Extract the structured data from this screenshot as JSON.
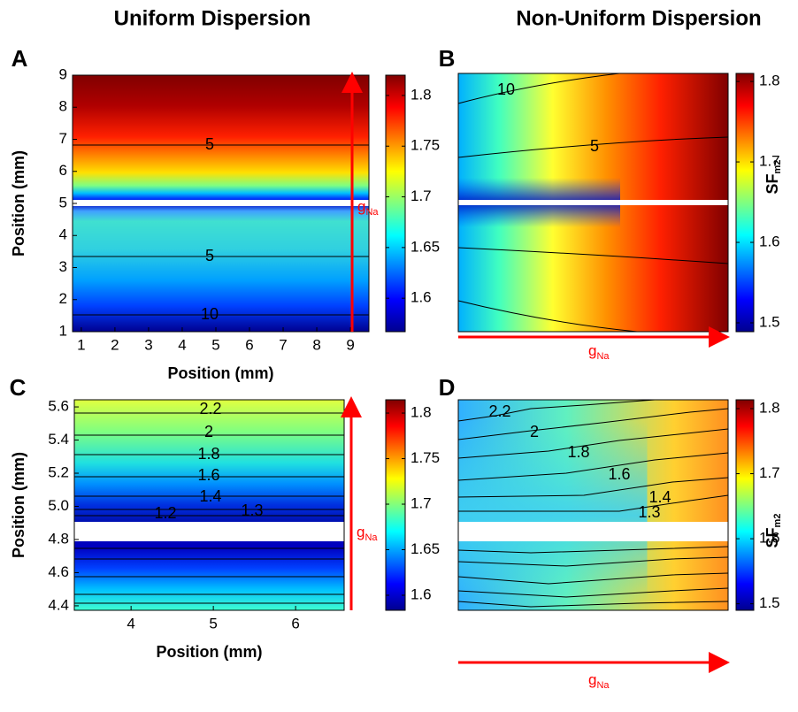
{
  "chart_data": [
    {
      "type": "heatmap",
      "panel": "A",
      "title": "Uniform Dispersion",
      "xlabel": "Position (mm)",
      "ylabel": "Position (mm)",
      "xlim": [
        0.74,
        9.55
      ],
      "xticks": [
        1,
        2,
        3,
        4,
        5,
        6,
        7,
        8,
        9
      ],
      "ylim": [
        1,
        9
      ],
      "yticks": [
        1,
        2,
        3,
        4,
        5,
        6,
        7,
        8,
        9
      ],
      "clim": [
        1.567,
        1.82
      ],
      "cticks": [
        1.6,
        1.65,
        1.7,
        1.75,
        1.8
      ],
      "contour_labels": [
        "5",
        "5",
        "10"
      ],
      "annotation": {
        "text": "g",
        "sub": "Na"
      }
    },
    {
      "type": "heatmap",
      "panel": "B",
      "title": "Non-Uniform Dispersion",
      "clim": [
        1.489,
        1.81
      ],
      "cticks": [
        1.5,
        1.6,
        1.7,
        1.8
      ],
      "colorbar_label": {
        "text": "SF",
        "sub": "m2"
      },
      "contour_labels": [
        "10",
        "5"
      ],
      "annotation": {
        "text": "g",
        "sub": "Na"
      }
    },
    {
      "type": "heatmap",
      "panel": "C",
      "xlabel": "Position (mm)",
      "ylabel": "Position (mm)",
      "xlim": [
        3.31,
        6.59
      ],
      "xticks": [
        4,
        5,
        6
      ],
      "ylim": [
        4.373,
        5.643
      ],
      "yticks": [
        4.4,
        4.6,
        4.8,
        {
          "value": 5,
          "label": "5.0"
        },
        5.2,
        5.4,
        5.6
      ],
      "clim": [
        1.5835,
        1.8146
      ],
      "cticks": [
        1.6,
        1.65,
        1.7,
        1.75,
        1.8
      ],
      "contour_labels": [
        "2.2",
        "2",
        "1.8",
        "1.6",
        "1.4",
        "1.2",
        "1.3"
      ],
      "annotation": {
        "text": "g",
        "sub": "Na"
      }
    },
    {
      "type": "heatmap",
      "panel": "D",
      "clim": [
        1.49,
        1.8136
      ],
      "cticks": [
        1.5,
        1.6,
        1.7,
        1.8
      ],
      "colorbar_label": {
        "text": "SF",
        "sub": "m2"
      },
      "contour_labels": [
        "2.2",
        "2",
        "1.8",
        "1.6",
        "1.4",
        "1.3"
      ],
      "annotation": {
        "text": "g",
        "sub": "Na"
      }
    }
  ]
}
